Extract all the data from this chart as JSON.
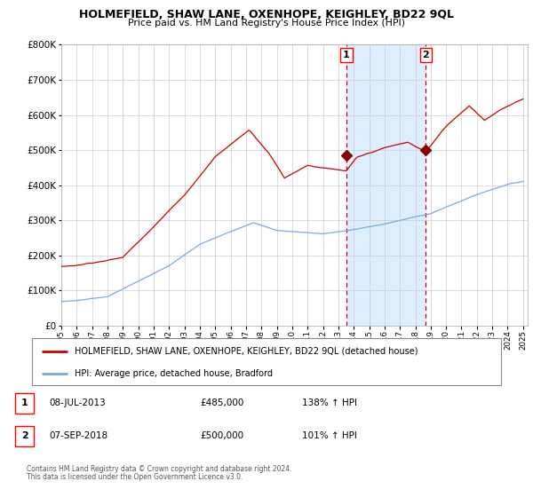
{
  "title": "HOLMEFIELD, SHAW LANE, OXENHOPE, KEIGHLEY, BD22 9QL",
  "subtitle": "Price paid vs. HM Land Registry's House Price Index (HPI)",
  "legend_line1": "HOLMEFIELD, SHAW LANE, OXENHOPE, KEIGHLEY, BD22 9QL (detached house)",
  "legend_line2": "HPI: Average price, detached house, Bradford",
  "footer1": "Contains HM Land Registry data © Crown copyright and database right 2024.",
  "footer2": "This data is licensed under the Open Government Licence v3.0.",
  "sale1_label": "1",
  "sale1_date": "08-JUL-2013",
  "sale1_price": "£485,000",
  "sale1_hpi": "138% ↑ HPI",
  "sale2_label": "2",
  "sale2_date": "07-SEP-2018",
  "sale2_price": "£500,000",
  "sale2_hpi": "101% ↑ HPI",
  "sale1_year": 2013.52,
  "sale2_year": 2018.68,
  "sale1_price_val": 485000,
  "sale2_price_val": 500000,
  "hpi_color": "#7aaadd",
  "house_color": "#cc0000",
  "sale_marker_color": "#880000",
  "ylim_min": 0,
  "ylim_max": 800000,
  "xlim_min": 1995,
  "xlim_max": 2025.3,
  "highlight_color": "#ddeeff",
  "vline_color": "#cc0000",
  "background_color": "#ffffff",
  "grid_color": "#cccccc"
}
